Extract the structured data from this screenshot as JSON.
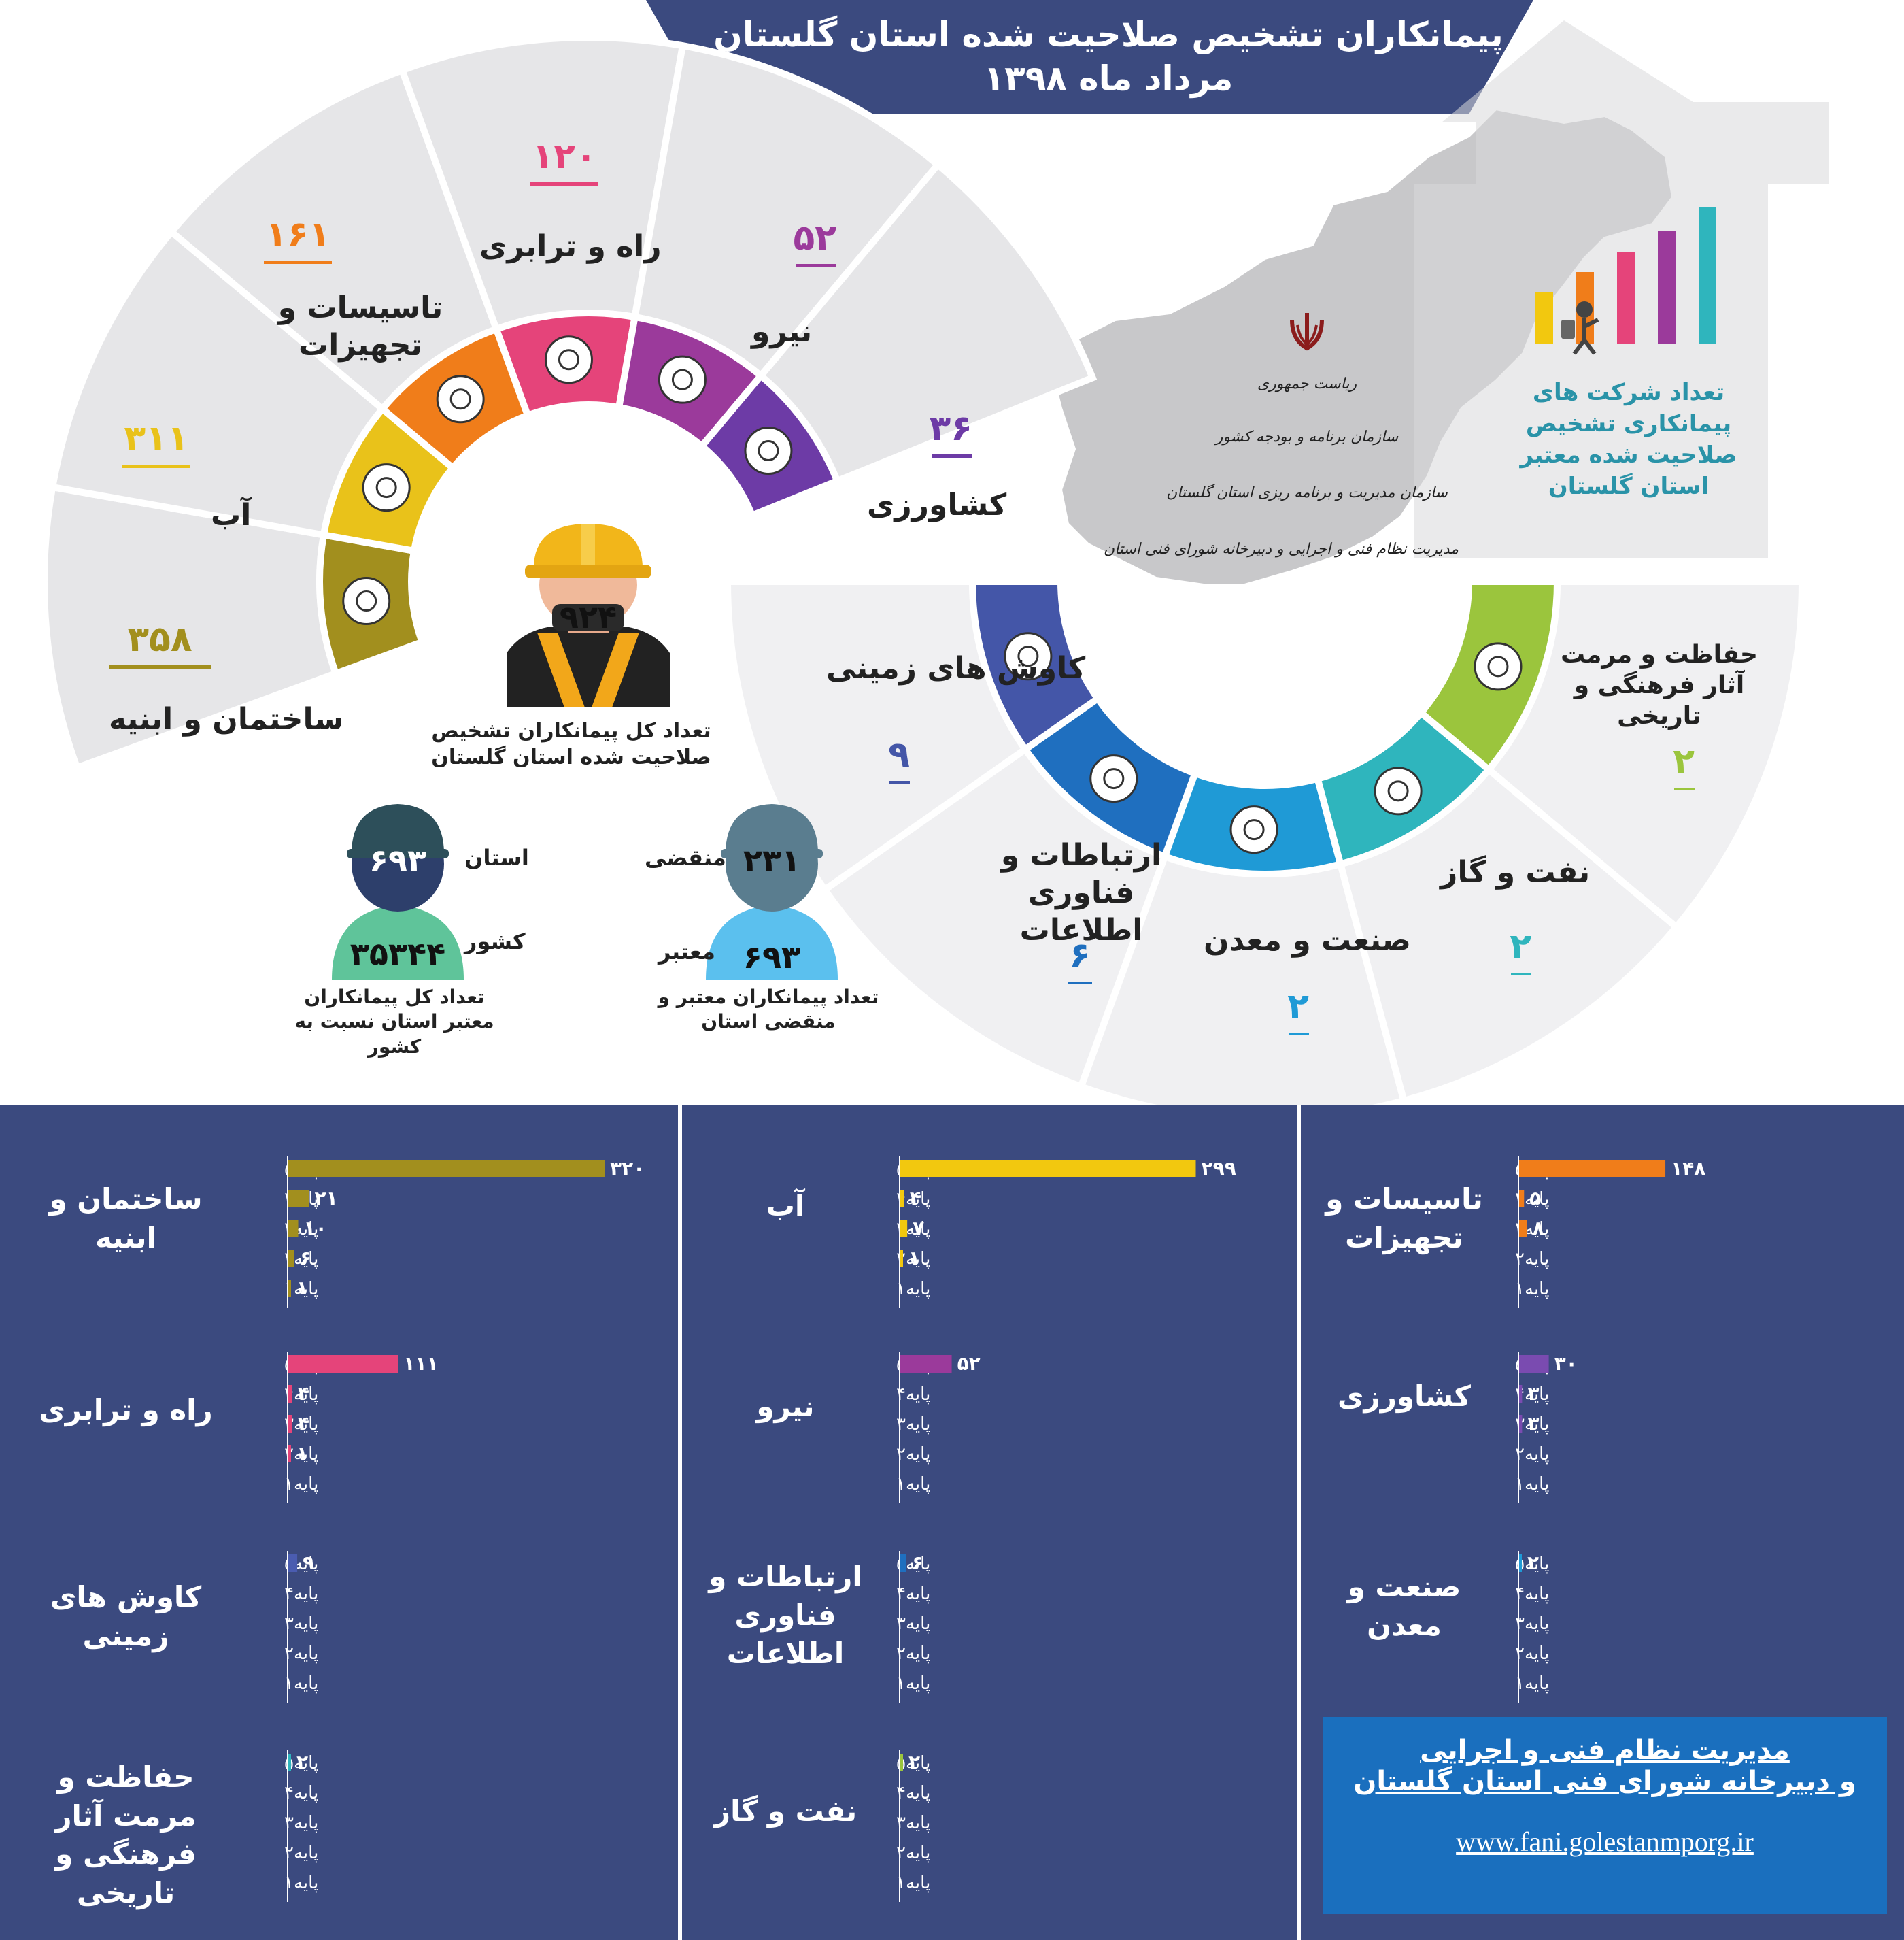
{
  "header": {
    "title_line1": "پیمانکاران تشخیص صلاحیت شده  استان گلستان",
    "title_line2": "مرداد ماه  ۱۳۹۸"
  },
  "colors": {
    "navy": "#3b4a7f",
    "gray_segment": "#e6e6e8",
    "ring_right": "#f0f0f2"
  },
  "left_segments": [
    {
      "key": "sakhteman",
      "label": "ساختمان و ابنیه",
      "value": "۳۵۸",
      "color": "#a28f1e",
      "icon": "house-icon"
    },
    {
      "key": "ab",
      "label": "آب",
      "value": "۳۱۱",
      "color": "#e9c21a",
      "icon": "water-drop-icon"
    },
    {
      "key": "tasisat",
      "label": "تاسیسات و تجهیزات",
      "value": "۱۶۱",
      "color": "#f07d1a",
      "icon": "building-icon"
    },
    {
      "key": "rah",
      "label": "راه و ترابری",
      "value": "۱۲۰",
      "color": "#e5447a",
      "icon": "road-roller-icon"
    },
    {
      "key": "niroo",
      "label": "نیرو",
      "value": "۵۲",
      "color": "#9b3a9b",
      "icon": "power-tower-icon"
    },
    {
      "key": "keshavarzi",
      "label": "کشاورزی",
      "value": "۳۶",
      "color": "#6d3ba6",
      "icon": "wheat-icon"
    }
  ],
  "right_segments": [
    {
      "key": "kavosh",
      "label": "کاوش های زمینی",
      "value": "۹",
      "color": "#4456a8",
      "icon": "excavator-icon"
    },
    {
      "key": "ertebatat",
      "label": "ارتباطات و فناوری اطلاعات",
      "value": "۶",
      "color": "#1f6fbf",
      "icon": "network-icon"
    },
    {
      "key": "sanat",
      "label": "صنعت و معدن",
      "value": "۲",
      "color": "#1f9ad6",
      "icon": "gear-icon"
    },
    {
      "key": "naft",
      "label": "نفت و گاز",
      "value": "۲",
      "color": "#2fb5bd",
      "icon": "oil-rig-icon"
    },
    {
      "key": "hefazat",
      "label": "حفاظت و مرمت آثار فرهنگی و تاریخی",
      "value": "۲",
      "color": "#9bc53d",
      "icon": "monument-icon"
    }
  ],
  "center": {
    "total": "۹۲۴",
    "caption": "تعداد کل پیمانکاران تشخیص صلاحیت شده استان گلستان"
  },
  "province_country": {
    "province_label": "استان",
    "province_value": "۶۹۳",
    "country_label": "کشور",
    "country_value": "۳۵۳۴۴",
    "caption": "تعداد کل پیمانکاران معتبر استان نسبت به کشور"
  },
  "valid_expired": {
    "expired_label": "منقضی",
    "expired_value": "۲۳۱",
    "valid_label": "معتبر",
    "valid_value": "۶۹۳",
    "caption": "تعداد پیمانکاران معتبر و منقضی استان"
  },
  "gov": {
    "emblem": "iran-emblem-icon",
    "line1": "ریاست جمهوری",
    "line2": "سازمان برنامه و بودجه کشور",
    "line3": "سازمان مدیریت و برنامه ریزی استان گلستان",
    "line4": "مدیریت نظام فنی و اجرایی و دبیرخانه شورای فنی استان"
  },
  "map_caption": "تعداد شرکت های پیمانکاری تشخیص صلاحیت شده معتبر استان گلستان",
  "chart_data": [
    {
      "type": "bar",
      "title": "تاسیسات و تجهیزات",
      "color": "#f07d1a",
      "categories": [
        "پایه۵",
        "پایه۴",
        "پایه۳",
        "پایه۲",
        "پایه۱"
      ],
      "values": [
        148,
        5,
        8,
        0,
        0
      ],
      "labels": [
        "۱۴۸",
        "۵",
        "۸",
        "",
        ""
      ]
    },
    {
      "type": "bar",
      "title": "آب",
      "color": "#f2c80f",
      "categories": [
        "پایه۵",
        "پایه۴",
        "پایه۳",
        "پایه۲",
        "پایه۱"
      ],
      "values": [
        299,
        4,
        7,
        1,
        0
      ],
      "labels": [
        "۲۹۹",
        "۴",
        "۷",
        "۱",
        ""
      ]
    },
    {
      "type": "bar",
      "title": "ساختمان و ابنیه",
      "color": "#a28f1e",
      "categories": [
        "پایه۵",
        "پایه۴",
        "پایه۳",
        "پایه۲",
        "پایه۱"
      ],
      "values": [
        320,
        21,
        10,
        6,
        1
      ],
      "labels": [
        "۳۲۰",
        "۲۱",
        "۱۰",
        "۶",
        "۱"
      ]
    },
    {
      "type": "bar",
      "title": "کشاورزی",
      "color": "#7a4bb0",
      "categories": [
        "پایه۵",
        "پایه۴",
        "پایه۳",
        "پایه۲",
        "پایه۱"
      ],
      "values": [
        30,
        3,
        3,
        0,
        0
      ],
      "labels": [
        "۳۰",
        "۳",
        "۳",
        "",
        ""
      ]
    },
    {
      "type": "bar",
      "title": "نیرو",
      "color": "#9b3a9b",
      "categories": [
        "پایه۵",
        "پایه۴",
        "پایه۳",
        "پایه۲",
        "پایه۱"
      ],
      "values": [
        52,
        0,
        0,
        0,
        0
      ],
      "labels": [
        "۵۲",
        "",
        "",
        "",
        ""
      ]
    },
    {
      "type": "bar",
      "title": "راه و ترابری",
      "color": "#e5447a",
      "categories": [
        "پایه۵",
        "پایه۴",
        "پایه۳",
        "پایه۲",
        "پایه۱"
      ],
      "values": [
        111,
        4,
        4,
        1,
        0
      ],
      "labels": [
        "۱۱۱",
        "۴",
        "۴",
        "۱",
        ""
      ]
    },
    {
      "type": "bar",
      "title": "صنعت و معدن",
      "color": "#1f9ad6",
      "categories": [
        "پایه۵",
        "پایه۴",
        "پایه۳",
        "پایه۲",
        "پایه۱"
      ],
      "values": [
        2,
        0,
        0,
        0,
        0
      ],
      "labels": [
        "۲",
        "",
        "",
        "",
        ""
      ]
    },
    {
      "type": "bar",
      "title": "ارتباطات و فناوری اطلاعات",
      "color": "#1f6fbf",
      "categories": [
        "پایه۵",
        "پایه۴",
        "پایه۳",
        "پایه۲",
        "پایه۱"
      ],
      "values": [
        6,
        0,
        0,
        0,
        0
      ],
      "labels": [
        "۶",
        "",
        "",
        "",
        ""
      ]
    },
    {
      "type": "bar",
      "title": "کاوش های زمینی",
      "color": "#4a5cb0",
      "categories": [
        "پایه۵",
        "پایه۴",
        "پایه۳",
        "پایه۲",
        "پایه۱"
      ],
      "values": [
        9,
        0,
        0,
        0,
        0
      ],
      "labels": [
        "۹",
        "",
        "",
        "",
        ""
      ]
    },
    {
      "type": "bar",
      "title": "نفت و گاز",
      "color": "#9bc53d",
      "categories": [
        "پایه۵",
        "پایه۴",
        "پایه۳",
        "پایه۲",
        "پایه۱"
      ],
      "values": [
        2,
        0,
        0,
        0,
        0
      ],
      "labels": [
        "۲",
        "",
        "",
        "",
        ""
      ]
    },
    {
      "type": "bar",
      "title": "حفاظت و مرمت آثار فرهنگی و تاریخی",
      "color": "#2fb5bd",
      "categories": [
        "پایه۵",
        "پایه۴",
        "پایه۳",
        "پایه۲",
        "پایه۱"
      ],
      "values": [
        2,
        0,
        0,
        0,
        0
      ],
      "labels": [
        "۲",
        "",
        "",
        "",
        ""
      ]
    }
  ],
  "footer": {
    "line1": "مدیریت نظام فنی و اجرایی",
    "line2": "و دبیرخانه شورای فنی استان گلستان",
    "url": "www.fani.golestanmporg.ir"
  }
}
